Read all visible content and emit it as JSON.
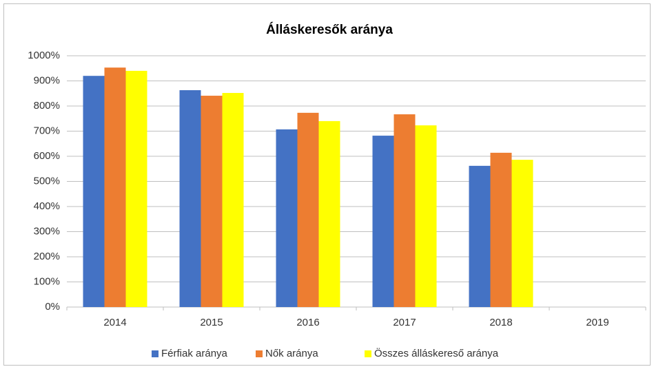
{
  "chart_data": {
    "type": "bar",
    "title": "Álláskeresők aránya",
    "categories": [
      "2014",
      "2015",
      "2016",
      "2017",
      "2018",
      "2019"
    ],
    "series": [
      {
        "name": "Férfiak aránya",
        "color": "#4472c4",
        "values": [
          920,
          863,
          707,
          682,
          562,
          null
        ]
      },
      {
        "name": "Nők aránya",
        "color": "#ed7d31",
        "values": [
          953,
          841,
          773,
          767,
          614,
          null
        ]
      },
      {
        "name": "Összes álláskereső aránya",
        "color": "#ffff00",
        "values": [
          940,
          852,
          740,
          723,
          586,
          null
        ]
      }
    ],
    "ylim": [
      0,
      1000
    ],
    "yticks": [
      {
        "value": 0,
        "label": "0%"
      },
      {
        "value": 100,
        "label": "100%"
      },
      {
        "value": 200,
        "label": "200%"
      },
      {
        "value": 300,
        "label": "300%"
      },
      {
        "value": 400,
        "label": "400%"
      },
      {
        "value": 500,
        "label": "500%"
      },
      {
        "value": 600,
        "label": "600%"
      },
      {
        "value": 700,
        "label": "700%"
      },
      {
        "value": 800,
        "label": "800%"
      },
      {
        "value": 900,
        "label": "900%"
      },
      {
        "value": 1000,
        "label": "1000%"
      }
    ],
    "grid": true,
    "legend": "bottom"
  }
}
